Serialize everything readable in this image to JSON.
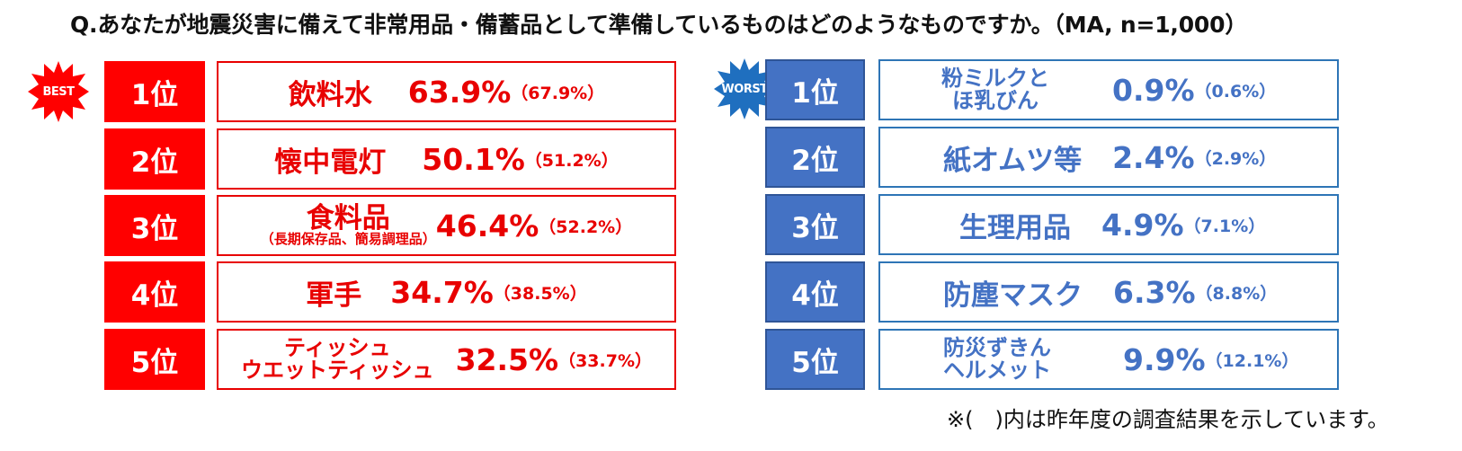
{
  "question": "Q.あなたが地震災害に備えて非常用品・備蓄品として準備しているものはどのようなものですか。（MA, n=1,000）",
  "colors": {
    "best": "#ff0000",
    "worst": "#4472c4",
    "worst_border": "#2e75b6"
  },
  "best": {
    "badge": "BEST",
    "items": [
      {
        "rank": "1位",
        "name": "飲料水",
        "pct": "63.9%",
        "prev": "（67.9%）"
      },
      {
        "rank": "2位",
        "name": "懐中電灯",
        "pct": "50.1%",
        "prev": "（51.2%）"
      },
      {
        "rank": "3位",
        "name": "食料品",
        "note": "（長期保存品、簡易調理品）",
        "pct": "46.4%",
        "prev": "（52.2%）"
      },
      {
        "rank": "4位",
        "name": "軍手",
        "pct": "34.7%",
        "prev": "（38.5%）"
      },
      {
        "rank": "5位",
        "name_line1": "ティッシュ",
        "name_line2": "ウエットティッシュ",
        "pct": "32.5%",
        "prev": "（33.7%）"
      }
    ]
  },
  "worst": {
    "badge": "WORST",
    "items": [
      {
        "rank": "1位",
        "name_line1": "粉ミルクと",
        "name_line2": "ほ乳びん",
        "pct": "0.9%",
        "prev": "（0.6%）"
      },
      {
        "rank": "2位",
        "name": "紙オムツ等",
        "pct": "2.4%",
        "prev": "（2.9%）"
      },
      {
        "rank": "3位",
        "name": "生理用品",
        "pct": "4.9%",
        "prev": "（7.1%）"
      },
      {
        "rank": "4位",
        "name": "防塵マスク",
        "pct": "6.3%",
        "prev": "（8.8%）"
      },
      {
        "rank": "5位",
        "name_line1": "防災ずきん",
        "name_line2": "ヘルメット",
        "pct": "9.9%",
        "prev": "（12.1%）"
      }
    ]
  },
  "footnote": "※(　)内は昨年度の調査結果を示しています。"
}
